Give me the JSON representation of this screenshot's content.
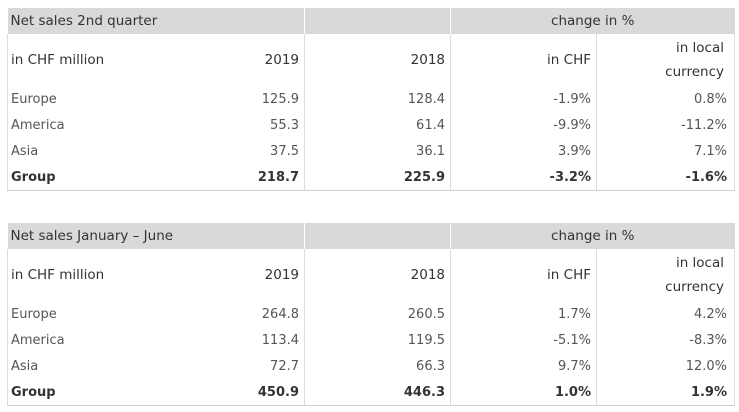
{
  "tables": [
    {
      "title": "Net sales 2nd quarter",
      "change_header": "change in %",
      "columns": {
        "unit": "in CHF million",
        "year_a": "2019",
        "year_b": "2018",
        "chf": "in CHF",
        "local_line1": "in local",
        "local_line2": "currency"
      },
      "rows": [
        {
          "label": "Europe",
          "y2019": "125.9",
          "y2018": "128.4",
          "chf": "-1.9%",
          "local": "0.8%"
        },
        {
          "label": "America",
          "y2019": "55.3",
          "y2018": "61.4",
          "chf": "-9.9%",
          "local": "-11.2%"
        },
        {
          "label": "Asia",
          "y2019": "37.5",
          "y2018": "36.1",
          "chf": "3.9%",
          "local": "7.1%"
        }
      ],
      "total": {
        "label": "Group",
        "y2019": "218.7",
        "y2018": "225.9",
        "chf": "-3.2%",
        "local": "-1.6%"
      }
    },
    {
      "title": "Net sales January – June",
      "change_header": "change in %",
      "columns": {
        "unit": "in CHF million",
        "year_a": "2019",
        "year_b": "2018",
        "chf": "in CHF",
        "local_line1": "in local",
        "local_line2": "currency"
      },
      "rows": [
        {
          "label": "Europe",
          "y2019": "264.8",
          "y2018": "260.5",
          "chf": "1.7%",
          "local": "4.2%"
        },
        {
          "label": "America",
          "y2019": "113.4",
          "y2018": "119.5",
          "chf": "-5.1%",
          "local": "-8.3%"
        },
        {
          "label": "Asia",
          "y2019": "72.7",
          "y2018": "66.3",
          "chf": "9.7%",
          "local": "12.0%"
        }
      ],
      "total": {
        "label": "Group",
        "y2019": "450.9",
        "y2018": "446.3",
        "chf": "1.0%",
        "local": "1.9%"
      }
    }
  ]
}
